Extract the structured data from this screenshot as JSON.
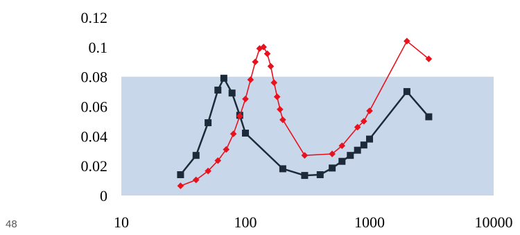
{
  "slide": {
    "page_number": "48"
  },
  "colors": {
    "band": "#c9d7ea",
    "series_dark": "#1c2a3a",
    "series_red": "#e8111c"
  },
  "chart_data": {
    "type": "line",
    "x_scale": "log",
    "xlim": [
      10,
      10000
    ],
    "ylim": [
      0,
      0.12
    ],
    "grid": false,
    "legend": "none",
    "x_ticks": [
      10,
      100,
      1000,
      10000
    ],
    "x_tick_labels": [
      "10",
      "100",
      "1000",
      "10000"
    ],
    "y_ticks": [
      0,
      0.02,
      0.04,
      0.06,
      0.08,
      0.1,
      0.12
    ],
    "y_tick_labels": [
      "0",
      "0.02",
      "0.04",
      "0.06",
      "0.08",
      "0.1",
      "0.12"
    ],
    "shaded_band": {
      "y_from": 0,
      "y_to": 0.08,
      "color": "#c9d7ea"
    },
    "series": [
      {
        "marker": "square",
        "color": "#1c2a3a",
        "x": [
          30,
          40,
          50,
          60,
          67,
          78,
          90,
          100,
          200,
          300,
          400,
          500,
          600,
          700,
          800,
          900,
          1000,
          2000,
          3000
        ],
        "y": [
          0.014,
          0.027,
          0.049,
          0.071,
          0.079,
          0.069,
          0.054,
          0.042,
          0.018,
          0.0135,
          0.014,
          0.0185,
          0.023,
          0.027,
          0.0305,
          0.034,
          0.038,
          0.07,
          0.053
        ]
      },
      {
        "marker": "diamond",
        "color": "#e8111c",
        "x": [
          30,
          40,
          50,
          60,
          70,
          80,
          90,
          100,
          110,
          120,
          130,
          140,
          150,
          160,
          170,
          180,
          190,
          200,
          300,
          500,
          600,
          800,
          900,
          1000,
          2000,
          3000
        ],
        "y": [
          0.0065,
          0.0105,
          0.0165,
          0.0235,
          0.031,
          0.0415,
          0.0535,
          0.065,
          0.078,
          0.09,
          0.099,
          0.1,
          0.0955,
          0.087,
          0.076,
          0.0665,
          0.058,
          0.051,
          0.027,
          0.028,
          0.0335,
          0.046,
          0.05,
          0.057,
          0.104,
          0.092
        ]
      }
    ]
  }
}
